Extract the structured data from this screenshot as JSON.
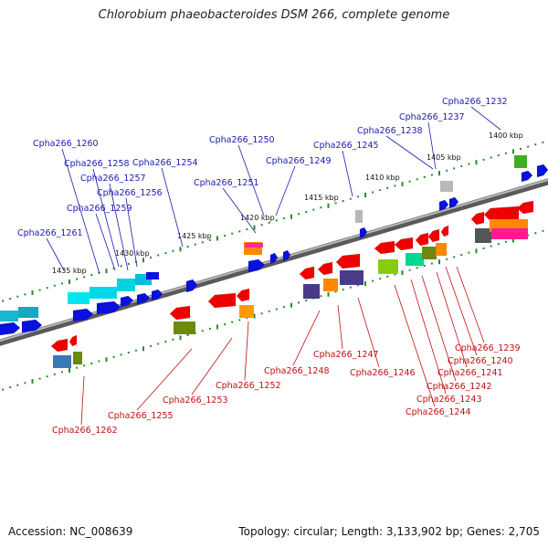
{
  "title": "Chlorobium phaeobacteroides DSM 266, complete genome",
  "footer": {
    "accession": "Accession: NC_008639",
    "summary": "Topology: circular; Length: 3,133,902 bp; Genes: 2,705"
  },
  "colors": {
    "backbone": "#8a8a8a",
    "top_label": "#1a1ab0",
    "bottom_label": "#c01010",
    "tick": "#2a8a2a"
  },
  "kbp_ticks": [
    "1400 kbp",
    "1405 kbp",
    "1410 kbp",
    "1415 kbp",
    "1420 kbp",
    "1425 kbp",
    "1430 kbp",
    "1435 kbp"
  ],
  "top_genes": [
    "Cpha266_1232",
    "Cpha266_1237",
    "Cpha266_1238",
    "Cpha266_1245",
    "Cpha266_1249",
    "Cpha266_1250",
    "Cpha266_1251",
    "Cpha266_1254",
    "Cpha266_1256",
    "Cpha266_1257",
    "Cpha266_1258",
    "Cpha266_1259",
    "Cpha266_1260",
    "Cpha266_1261"
  ],
  "bottom_genes": [
    "Cpha266_1239",
    "Cpha266_1240",
    "Cpha266_1241",
    "Cpha266_1242",
    "Cpha266_1243",
    "Cpha266_1244",
    "Cpha266_1246",
    "Cpha266_1247",
    "Cpha266_1248",
    "Cpha266_1252",
    "Cpha266_1253",
    "Cpha266_1255",
    "Cpha266_1262"
  ]
}
